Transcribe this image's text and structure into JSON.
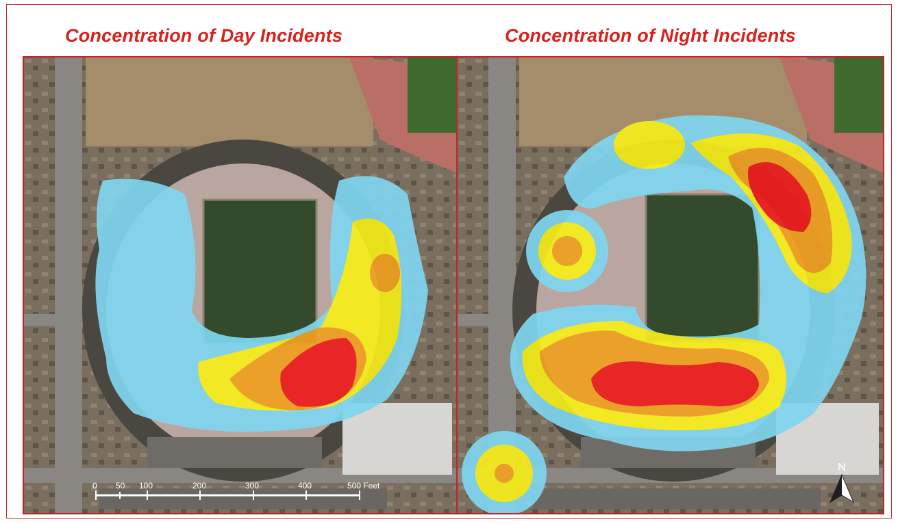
{
  "titles": {
    "day": "Concentration of Day Incidents",
    "night": "Concentration of Night Incidents"
  },
  "scale_bar": {
    "labels": [
      "0",
      "50",
      "100",
      "200",
      "300",
      "400",
      "500 Feet"
    ]
  },
  "north_arrow": {
    "label": "N",
    "icon": "north-arrow-icon"
  },
  "legend_colors": {
    "low": "#7fd6f0",
    "medium": "#f7ee1a",
    "high": "#f0a020",
    "highest": "#ee1c1c"
  }
}
